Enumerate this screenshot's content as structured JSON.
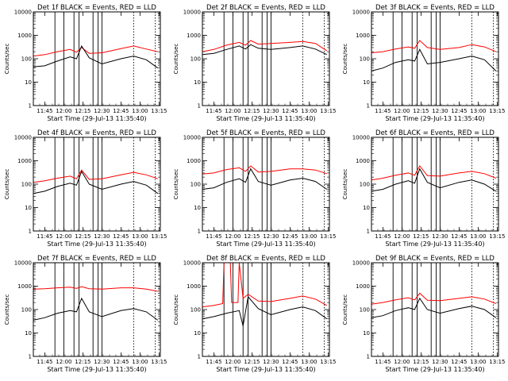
{
  "chart_data": [
    {
      "type": "line",
      "title": "Det 1f BLACK = Events, RED = LLD",
      "xlabel": "Start Time (29-Jul-13 11:35:40)",
      "ylabel": "Counts/sec",
      "yscale": "log",
      "ylim": [
        1,
        10000
      ],
      "xlim": [
        "11:36",
        "13:16"
      ],
      "x_ticks": [
        "11:45",
        "12:00",
        "12:15",
        "12:30",
        "12:45",
        "13:00",
        "13:15"
      ],
      "y_ticks": [
        "1",
        "10",
        "100",
        "1000",
        "10000"
      ],
      "vlines_solid": [
        "11:53",
        "12:00",
        "12:08",
        "12:12",
        "12:23",
        "12:27",
        "12:30"
      ],
      "vlines_dotted": [
        "12:55",
        "13:12"
      ],
      "series": [
        {
          "name": "RED",
          "color": "#ff0000",
          "x": [
            "11:36",
            "11:45",
            "11:55",
            "12:05",
            "12:10",
            "12:14",
            "12:20",
            "12:30",
            "12:45",
            "12:55",
            "13:05",
            "13:14"
          ],
          "y": [
            130,
            150,
            200,
            250,
            190,
            300,
            170,
            180,
            270,
            350,
            260,
            200
          ]
        },
        {
          "name": "BLACK",
          "color": "#000000",
          "x": [
            "11:36",
            "11:45",
            "11:55",
            "12:05",
            "12:10",
            "12:14",
            "12:20",
            "12:30",
            "12:45",
            "12:55",
            "13:05",
            "13:14"
          ],
          "y": [
            45,
            50,
            80,
            120,
            100,
            350,
            110,
            60,
            100,
            130,
            90,
            40
          ]
        }
      ]
    },
    {
      "type": "line",
      "title": "Det 2f BLACK = Events, RED = LLD",
      "xlabel": "Start Time (29-Jul-13 11:35:40)",
      "ylabel": "Counts/sec",
      "yscale": "log",
      "ylim": [
        1,
        10000
      ],
      "xlim": [
        "11:36",
        "13:16"
      ],
      "x_ticks": [
        "11:45",
        "12:00",
        "12:15",
        "12:30",
        "12:45",
        "13:00",
        "13:15"
      ],
      "y_ticks": [
        "1",
        "10",
        "100",
        "1000",
        "10000"
      ],
      "vlines_solid": [
        "11:53",
        "12:00",
        "12:08",
        "12:12",
        "12:23",
        "12:27",
        "12:30"
      ],
      "vlines_dotted": [
        "12:55",
        "13:12"
      ],
      "series": [
        {
          "name": "RED",
          "color": "#ff0000",
          "x": [
            "11:36",
            "11:45",
            "11:55",
            "12:05",
            "12:10",
            "12:14",
            "12:20",
            "12:30",
            "12:45",
            "12:55",
            "13:05",
            "13:14"
          ],
          "y": [
            200,
            250,
            380,
            500,
            380,
            600,
            420,
            450,
            500,
            550,
            450,
            220
          ]
        },
        {
          "name": "BLACK",
          "color": "#000000",
          "x": [
            "11:36",
            "11:45",
            "11:55",
            "12:05",
            "12:10",
            "12:14",
            "12:20",
            "12:30",
            "12:45",
            "12:55",
            "13:05",
            "13:14"
          ],
          "y": [
            150,
            170,
            250,
            350,
            260,
            400,
            280,
            250,
            300,
            350,
            260,
            150
          ]
        }
      ]
    },
    {
      "type": "line",
      "title": "Det 3f BLACK = Events, RED = LLD",
      "xlabel": "Start Time (29-Jul-13 11:35:40)",
      "ylabel": "Counts/sec",
      "yscale": "log",
      "ylim": [
        1,
        10000
      ],
      "xlim": [
        "11:36",
        "13:16"
      ],
      "x_ticks": [
        "11:45",
        "12:00",
        "12:15",
        "12:30",
        "12:45",
        "13:00",
        "13:15"
      ],
      "y_ticks": [
        "1",
        "10",
        "100",
        "1000",
        "10000"
      ],
      "vlines_solid": [
        "11:53",
        "12:00",
        "12:08",
        "12:12",
        "12:23",
        "12:27",
        "12:30"
      ],
      "vlines_dotted": [
        "12:55",
        "13:12"
      ],
      "series": [
        {
          "name": "RED",
          "color": "#ff0000",
          "x": [
            "11:36",
            "11:45",
            "11:55",
            "12:05",
            "12:10",
            "12:14",
            "12:20",
            "12:30",
            "12:45",
            "12:55",
            "13:05",
            "13:14"
          ],
          "y": [
            180,
            200,
            260,
            320,
            280,
            600,
            300,
            250,
            300,
            400,
            320,
            200
          ]
        },
        {
          "name": "BLACK",
          "color": "#000000",
          "x": [
            "11:36",
            "11:45",
            "11:55",
            "12:05",
            "12:10",
            "12:14",
            "12:20",
            "12:30",
            "12:45",
            "12:55",
            "13:05",
            "13:14"
          ],
          "y": [
            30,
            40,
            70,
            90,
            80,
            250,
            60,
            70,
            100,
            130,
            90,
            30
          ]
        }
      ]
    },
    {
      "type": "line",
      "title": "Det 4f BLACK = Events, RED = LLD",
      "xlabel": "Start Time (29-Jul-13 11:35:40)",
      "ylabel": "Counts/sec",
      "yscale": "log",
      "ylim": [
        1,
        10000
      ],
      "xlim": [
        "11:36",
        "13:16"
      ],
      "x_ticks": [
        "11:45",
        "12:00",
        "12:15",
        "12:30",
        "12:45",
        "13:00",
        "13:15"
      ],
      "y_ticks": [
        "1",
        "10",
        "100",
        "1000",
        "10000"
      ],
      "vlines_solid": [
        "11:53",
        "12:00",
        "12:08",
        "12:12",
        "12:23",
        "12:27",
        "12:30"
      ],
      "vlines_dotted": [
        "12:55",
        "13:12"
      ],
      "series": [
        {
          "name": "RED",
          "color": "#ff0000",
          "x": [
            "11:36",
            "11:45",
            "11:55",
            "12:05",
            "12:10",
            "12:14",
            "12:20",
            "12:30",
            "12:45",
            "12:55",
            "13:05",
            "13:14"
          ],
          "y": [
            120,
            140,
            180,
            220,
            170,
            400,
            160,
            170,
            250,
            320,
            250,
            170
          ]
        },
        {
          "name": "BLACK",
          "color": "#000000",
          "x": [
            "11:36",
            "11:45",
            "11:55",
            "12:05",
            "12:10",
            "12:14",
            "12:20",
            "12:30",
            "12:45",
            "12:55",
            "13:05",
            "13:14"
          ],
          "y": [
            40,
            50,
            80,
            110,
            90,
            350,
            100,
            60,
            100,
            130,
            90,
            40
          ]
        }
      ]
    },
    {
      "type": "line",
      "title": "Det 5f BLACK = Events, RED = LLD",
      "xlabel": "Start Time (29-Jul-13 11:35:40)",
      "ylabel": "Counts/sec",
      "yscale": "log",
      "ylim": [
        1,
        10000
      ],
      "xlim": [
        "11:36",
        "13:16"
      ],
      "x_ticks": [
        "11:45",
        "12:00",
        "12:15",
        "12:30",
        "12:45",
        "13:00",
        "13:15"
      ],
      "y_ticks": [
        "1",
        "10",
        "100",
        "1000",
        "10000"
      ],
      "vlines_solid": [
        "11:53",
        "12:00",
        "12:08",
        "12:12",
        "12:23",
        "12:27",
        "12:30"
      ],
      "vlines_dotted": [
        "12:55",
        "13:12"
      ],
      "series": [
        {
          "name": "RED",
          "color": "#ff0000",
          "x": [
            "11:36",
            "11:45",
            "11:55",
            "12:05",
            "12:10",
            "12:14",
            "12:20",
            "12:30",
            "12:45",
            "12:55",
            "13:05",
            "13:14"
          ],
          "y": [
            270,
            300,
            420,
            500,
            350,
            600,
            330,
            350,
            450,
            450,
            400,
            280
          ]
        },
        {
          "name": "BLACK",
          "color": "#000000",
          "x": [
            "11:36",
            "11:45",
            "11:55",
            "12:05",
            "12:10",
            "12:14",
            "12:20",
            "12:30",
            "12:45",
            "12:55",
            "13:05",
            "13:14"
          ],
          "y": [
            60,
            70,
            120,
            170,
            120,
            450,
            130,
            90,
            150,
            180,
            130,
            60
          ]
        }
      ]
    },
    {
      "type": "line",
      "title": "Det 6f BLACK = Events, RED = LLD",
      "xlabel": "Start Time (29-Jul-13 11:35:40)",
      "ylabel": "Counts/sec",
      "yscale": "log",
      "ylim": [
        1,
        10000
      ],
      "xlim": [
        "11:36",
        "13:16"
      ],
      "x_ticks": [
        "11:45",
        "12:00",
        "12:15",
        "12:30",
        "12:45",
        "13:00",
        "13:15"
      ],
      "y_ticks": [
        "1",
        "10",
        "100",
        "1000",
        "10000"
      ],
      "vlines_solid": [
        "11:53",
        "12:00",
        "12:08",
        "12:12",
        "12:23",
        "12:27",
        "12:30"
      ],
      "vlines_dotted": [
        "12:55",
        "13:12"
      ],
      "series": [
        {
          "name": "RED",
          "color": "#ff0000",
          "x": [
            "11:36",
            "11:45",
            "11:55",
            "12:05",
            "12:10",
            "12:14",
            "12:20",
            "12:30",
            "12:45",
            "12:55",
            "13:05",
            "13:14"
          ],
          "y": [
            150,
            180,
            240,
            300,
            240,
            600,
            230,
            220,
            300,
            350,
            280,
            180
          ]
        },
        {
          "name": "BLACK",
          "color": "#000000",
          "x": [
            "11:36",
            "11:45",
            "11:55",
            "12:05",
            "12:10",
            "12:14",
            "12:20",
            "12:30",
            "12:45",
            "12:55",
            "13:05",
            "13:14"
          ],
          "y": [
            50,
            60,
            100,
            140,
            110,
            450,
            120,
            70,
            120,
            150,
            100,
            50
          ]
        }
      ]
    },
    {
      "type": "line",
      "title": "Det 7f BLACK = Events, RED = LLD",
      "xlabel": "Start Time (29-Jul-13 11:35:40)",
      "ylabel": "Counts/sec",
      "yscale": "log",
      "ylim": [
        1,
        10000
      ],
      "xlim": [
        "11:36",
        "13:16"
      ],
      "x_ticks": [
        "11:45",
        "12:00",
        "12:15",
        "12:30",
        "12:45",
        "13:00",
        "13:15"
      ],
      "y_ticks": [
        "1",
        "10",
        "100",
        "1000",
        "10000"
      ],
      "vlines_solid": [
        "11:53",
        "12:00",
        "12:08",
        "12:12",
        "12:23",
        "12:27",
        "12:30"
      ],
      "vlines_dotted": [
        "12:55",
        "13:12"
      ],
      "series": [
        {
          "name": "RED",
          "color": "#ff0000",
          "x": [
            "11:36",
            "11:45",
            "11:55",
            "12:05",
            "12:10",
            "12:14",
            "12:20",
            "12:30",
            "12:45",
            "12:55",
            "13:05",
            "13:14"
          ],
          "y": [
            750,
            780,
            850,
            900,
            800,
            950,
            780,
            750,
            850,
            850,
            750,
            600
          ]
        },
        {
          "name": "BLACK",
          "color": "#000000",
          "x": [
            "11:36",
            "11:45",
            "11:55",
            "12:05",
            "12:10",
            "12:14",
            "12:20",
            "12:30",
            "12:45",
            "12:55",
            "13:05",
            "13:14"
          ],
          "y": [
            35,
            45,
            70,
            90,
            80,
            300,
            80,
            50,
            90,
            110,
            80,
            35
          ]
        }
      ]
    },
    {
      "type": "line",
      "title": "Det 8f BLACK = Events, RED = LLD",
      "xlabel": "Start Time (29-Jul-13 11:35:40)",
      "ylabel": "Counts/sec",
      "yscale": "log",
      "ylim": [
        1,
        10000
      ],
      "xlim": [
        "11:36",
        "13:16"
      ],
      "x_ticks": [
        "11:45",
        "12:00",
        "12:15",
        "12:30",
        "12:45",
        "13:00",
        "13:15"
      ],
      "y_ticks": [
        "1",
        "10",
        "100",
        "1000",
        "10000"
      ],
      "vlines_solid": [
        "11:53",
        "12:00",
        "12:08",
        "12:12",
        "12:23",
        "12:27",
        "12:30"
      ],
      "vlines_dotted": [
        "12:55",
        "13:12"
      ],
      "series": [
        {
          "name": "RED",
          "color": "#ff0000",
          "x": [
            "11:36",
            "11:45",
            "11:52",
            "11:53",
            "11:58",
            "11:59",
            "12:04",
            "12:05",
            "12:08",
            "12:12",
            "12:20",
            "12:30",
            "12:45",
            "12:55",
            "13:05",
            "13:14"
          ],
          "y": [
            130,
            150,
            180,
            10000,
            10000,
            200,
            200,
            10000,
            300,
            450,
            230,
            220,
            300,
            380,
            280,
            150
          ]
        },
        {
          "name": "BLACK",
          "color": "#000000",
          "x": [
            "11:36",
            "11:45",
            "11:55",
            "12:05",
            "12:08",
            "12:12",
            "12:20",
            "12:30",
            "12:45",
            "12:55",
            "13:05",
            "13:14"
          ],
          "y": [
            40,
            50,
            70,
            90,
            20,
            350,
            110,
            60,
            100,
            130,
            90,
            40
          ]
        }
      ]
    },
    {
      "type": "line",
      "title": "Det 9f BLACK = Events, RED = LLD",
      "xlabel": "Start Time (29-Jul-13 11:35:40)",
      "ylabel": "Counts/sec",
      "yscale": "log",
      "ylim": [
        1,
        10000
      ],
      "xlim": [
        "11:36",
        "13:16"
      ],
      "x_ticks": [
        "11:45",
        "12:00",
        "12:15",
        "12:30",
        "12:45",
        "13:00",
        "13:15"
      ],
      "y_ticks": [
        "1",
        "10",
        "100",
        "1000",
        "10000"
      ],
      "vlines_solid": [
        "11:53",
        "12:00",
        "12:08",
        "12:12",
        "12:23",
        "12:27",
        "12:30"
      ],
      "vlines_dotted": [
        "12:55",
        "13:12"
      ],
      "series": [
        {
          "name": "RED",
          "color": "#ff0000",
          "x": [
            "11:36",
            "11:45",
            "11:55",
            "12:05",
            "12:10",
            "12:14",
            "12:20",
            "12:30",
            "12:45",
            "12:55",
            "13:05",
            "13:14"
          ],
          "y": [
            170,
            200,
            260,
            320,
            260,
            500,
            250,
            240,
            300,
            350,
            280,
            180
          ]
        },
        {
          "name": "BLACK",
          "color": "#000000",
          "x": [
            "11:36",
            "11:45",
            "11:55",
            "12:05",
            "12:10",
            "12:14",
            "12:20",
            "12:30",
            "12:45",
            "12:55",
            "13:05",
            "13:14"
          ],
          "y": [
            45,
            55,
            90,
            120,
            100,
            300,
            100,
            70,
            110,
            140,
            100,
            45
          ]
        }
      ]
    }
  ]
}
